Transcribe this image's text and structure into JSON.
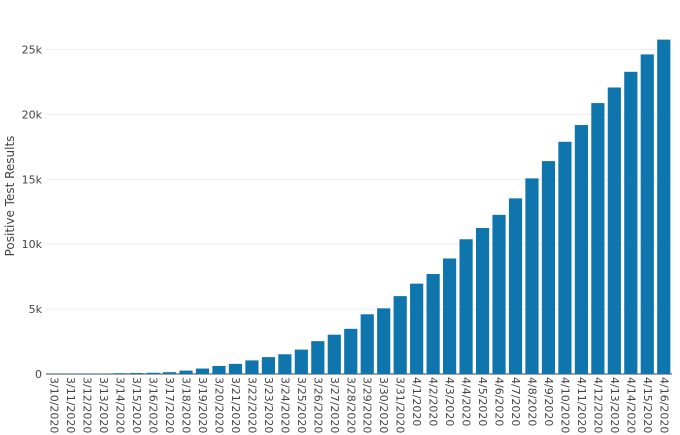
{
  "chart_data": {
    "type": "bar",
    "title": "",
    "xlabel": "",
    "ylabel": "Positive Test Results",
    "ylim": [
      0,
      26500
    ],
    "yticks": [
      0,
      5000,
      10000,
      15000,
      20000,
      25000
    ],
    "ytick_labels": [
      "0",
      "5k",
      "10k",
      "15k",
      "20k",
      "25k"
    ],
    "grid": true,
    "bar_color": "#0f75ad",
    "categories": [
      "3/10/2020",
      "3/11/2020",
      "3/12/2020",
      "3/13/2020",
      "3/14/2020",
      "3/15/2020",
      "3/16/2020",
      "3/17/2020",
      "3/18/2020",
      "3/19/2020",
      "3/20/2020",
      "3/21/2020",
      "3/22/2020",
      "3/23/2020",
      "3/24/2020",
      "3/25/2020",
      "3/26/2020",
      "3/27/2020",
      "3/28/2020",
      "3/29/2020",
      "3/30/2020",
      "3/31/2020",
      "4/1/2020",
      "4/2/2020",
      "4/3/2020",
      "4/4/2020",
      "4/5/2020",
      "4/6/2020",
      "4/7/2020",
      "4/8/2020",
      "4/9/2020",
      "4/10/2020",
      "4/11/2020",
      "4/12/2020",
      "4/13/2020",
      "4/14/2020",
      "4/15/2020",
      "4/16/2020"
    ],
    "values": [
      15,
      20,
      25,
      35,
      60,
      75,
      95,
      140,
      260,
      420,
      620,
      780,
      1050,
      1300,
      1520,
      1880,
      2530,
      3030,
      3480,
      4600,
      5060,
      6000,
      6960,
      7700,
      8900,
      10380,
      11250,
      12260,
      13530,
      15070,
      16400,
      17890,
      19180,
      20870,
      22070,
      23280,
      24620,
      25760
    ]
  }
}
